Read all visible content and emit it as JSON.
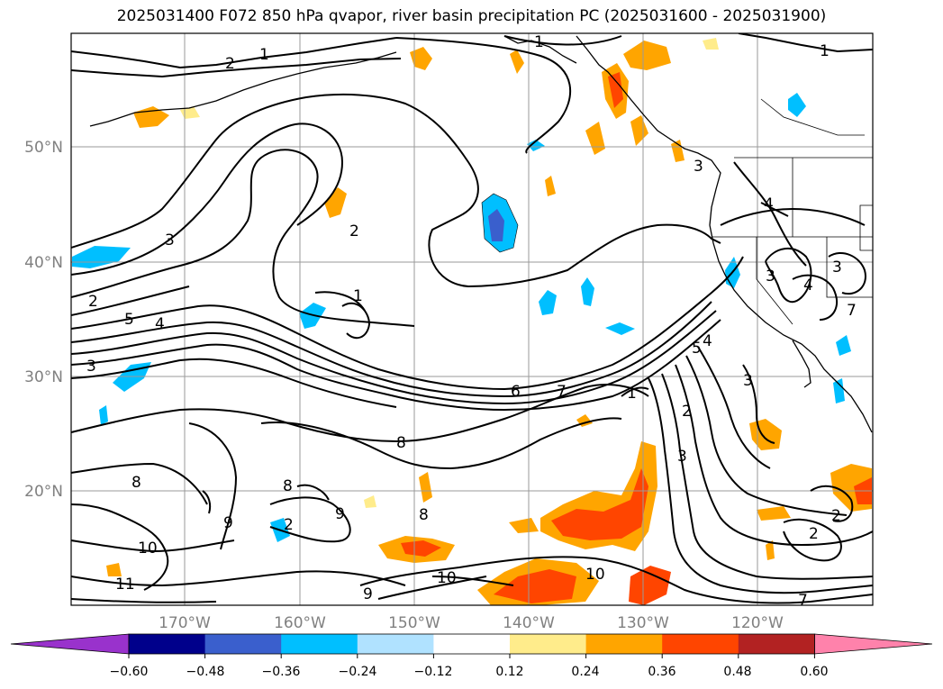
{
  "title": "2025031400 F072 850 hPa qvapor, river basin precipitation PC (2025031600 - 2025031900)",
  "lat_labels": [
    "50°N",
    "40°N",
    "30°N",
    "20°N"
  ],
  "lon_labels": [
    "170°W",
    "160°W",
    "150°W",
    "140°W",
    "130°W",
    "120°W"
  ],
  "contour_labels": [
    "1",
    "2",
    "1",
    "1",
    "2",
    "3",
    "2",
    "1",
    "4",
    "5",
    "3",
    "6",
    "7",
    "7",
    "1",
    "8",
    "8",
    "8",
    "9",
    "8",
    "9",
    "10",
    "10",
    "10",
    "11",
    "9",
    "3",
    "4",
    "3",
    "4",
    "3",
    "3",
    "2",
    "2",
    "3",
    "4",
    "5",
    "2",
    "2",
    "7"
  ],
  "colorbar": {
    "ticks": [
      "−0.60",
      "−0.48",
      "−0.36",
      "−0.24",
      "−0.12",
      "0.12",
      "0.24",
      "0.36",
      "0.48",
      "0.60"
    ],
    "colors": [
      "#9932cc",
      "#00008b",
      "#3a5fcd",
      "#00bfff",
      "#b0e2ff",
      "#ffffff",
      "#ffec8b",
      "#ffa500",
      "#ff4500",
      "#b22222",
      "#ff82ab"
    ]
  }
}
